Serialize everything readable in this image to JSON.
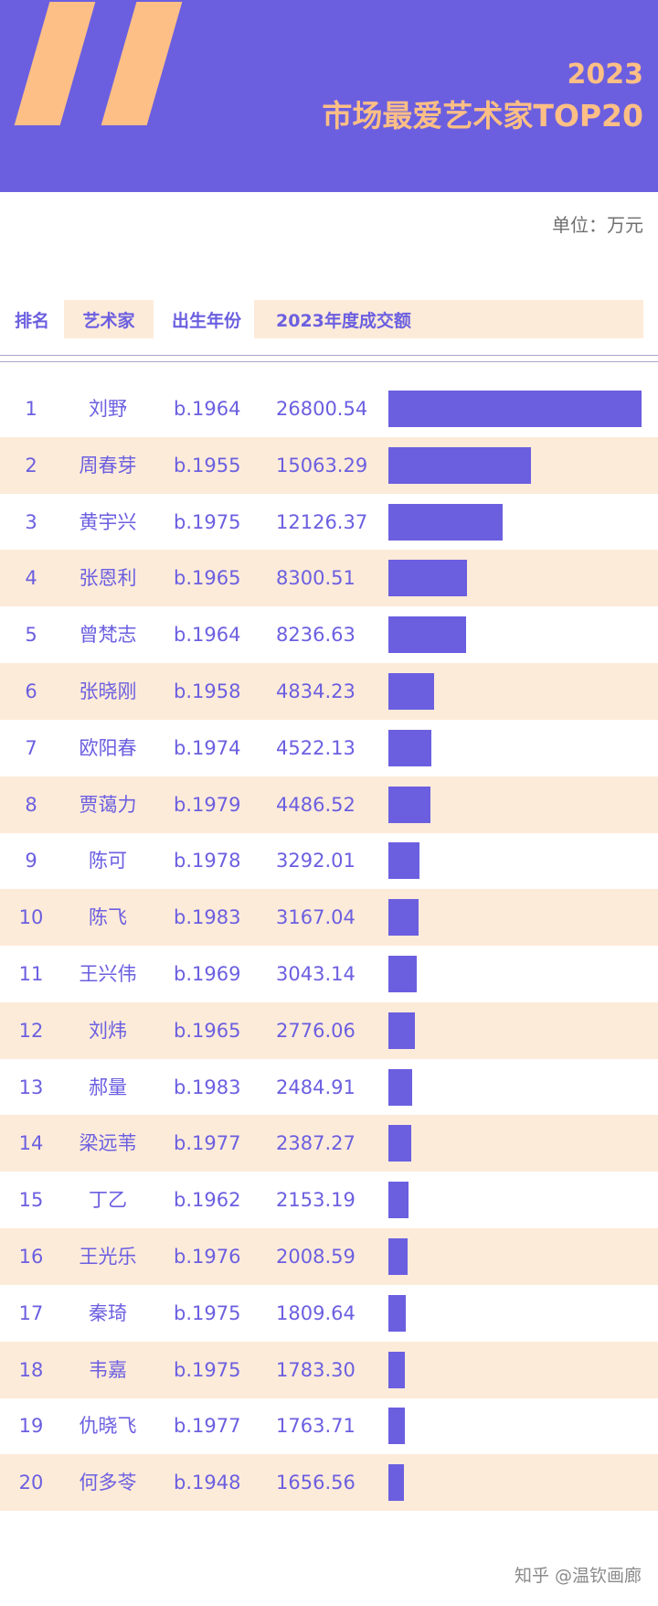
{
  "colors": {
    "accent": "#6b5fe0",
    "peach": "#fdbf85",
    "row_bg": "#fdebd9"
  },
  "header": {
    "year": "2023",
    "title": "市场最爱艺术家TOP20"
  },
  "unit": "单位：万元",
  "columns": {
    "rank": "排名",
    "artist": "艺术家",
    "birth": "出生年份",
    "deal": "2023年度成交额"
  },
  "chart_data": {
    "type": "bar",
    "orientation": "horizontal",
    "title": "市场最爱艺术家TOP20",
    "categories": [
      "刘野",
      "周春芽",
      "黄宇兴",
      "张恩利",
      "曾梵志",
      "张晓刚",
      "欧阳春",
      "贾蔼力",
      "陈可",
      "陈飞",
      "王兴伟",
      "刘炜",
      "郝量",
      "梁远苇",
      "丁乙",
      "王光乐",
      "秦琦",
      "韦嘉",
      "仇晓飞",
      "何多苓"
    ],
    "series": [
      {
        "values": [
          26800.54,
          15063.29,
          12126.37,
          8300.51,
          8236.63,
          4834.23,
          4522.13,
          4486.52,
          3292.01,
          3167.04,
          3043.14,
          2776.06,
          2484.91,
          2387.27,
          2153.19,
          2008.59,
          1809.64,
          1783.3,
          1763.71,
          1656.56
        ]
      }
    ],
    "rows": [
      {
        "rank": "1",
        "artist": "刘野",
        "birth": "b.1964",
        "value": "26800.54"
      },
      {
        "rank": "2",
        "artist": "周春芽",
        "birth": "b.1955",
        "value": "15063.29"
      },
      {
        "rank": "3",
        "artist": "黄宇兴",
        "birth": "b.1975",
        "value": "12126.37"
      },
      {
        "rank": "4",
        "artist": "张恩利",
        "birth": "b.1965",
        "value": "8300.51"
      },
      {
        "rank": "5",
        "artist": "曾梵志",
        "birth": "b.1964",
        "value": "8236.63"
      },
      {
        "rank": "6",
        "artist": "张晓刚",
        "birth": "b.1958",
        "value": "4834.23"
      },
      {
        "rank": "7",
        "artist": "欧阳春",
        "birth": "b.1974",
        "value": "4522.13"
      },
      {
        "rank": "8",
        "artist": "贾蔼力",
        "birth": "b.1979",
        "value": "4486.52"
      },
      {
        "rank": "9",
        "artist": "陈可",
        "birth": "b.1978",
        "value": "3292.01"
      },
      {
        "rank": "10",
        "artist": "陈飞",
        "birth": "b.1983",
        "value": "3167.04"
      },
      {
        "rank": "11",
        "artist": "王兴伟",
        "birth": "b.1969",
        "value": "3043.14"
      },
      {
        "rank": "12",
        "artist": "刘炜",
        "birth": "b.1965",
        "value": "2776.06"
      },
      {
        "rank": "13",
        "artist": "郝量",
        "birth": "b.1983",
        "value": "2484.91"
      },
      {
        "rank": "14",
        "artist": "梁远苇",
        "birth": "b.1977",
        "value": "2387.27"
      },
      {
        "rank": "15",
        "artist": "丁乙",
        "birth": "b.1962",
        "value": "2153.19"
      },
      {
        "rank": "16",
        "artist": "王光乐",
        "birth": "b.1976",
        "value": "2008.59"
      },
      {
        "rank": "17",
        "artist": "秦琦",
        "birth": "b.1975",
        "value": "1809.64"
      },
      {
        "rank": "18",
        "artist": "韦嘉",
        "birth": "b.1975",
        "value": "1783.30"
      },
      {
        "rank": "19",
        "artist": "仇晓飞",
        "birth": "b.1977",
        "value": "1763.71"
      },
      {
        "rank": "20",
        "artist": "何多苓",
        "birth": "b.1948",
        "value": "1656.56"
      }
    ],
    "xlim": [
      0,
      26800.54
    ],
    "grid": false,
    "legend": "none"
  },
  "watermark": "知乎 @温钦画廊"
}
